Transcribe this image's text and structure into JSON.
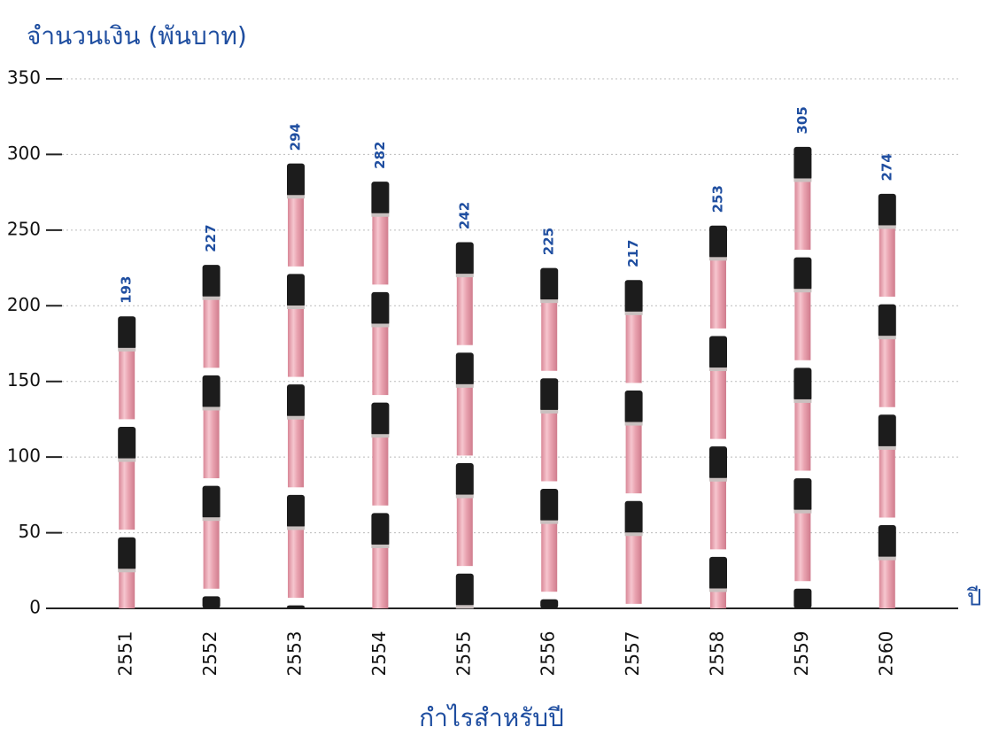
{
  "chart_data": {
    "type": "bar",
    "title": "จำนวนเงิน (พันบาท)",
    "x_label": "กำไรสำหรับปี",
    "x_unit": "ปี",
    "categories": [
      "2551",
      "2552",
      "2553",
      "2554",
      "2555",
      "2556",
      "2557",
      "2558",
      "2559",
      "2560"
    ],
    "values": [
      193,
      227,
      294,
      282,
      242,
      225,
      217,
      253,
      305,
      274
    ],
    "color": "#e9a3b0",
    "cap_color": "#1c1c1c",
    "label_color": "#1f4ea0",
    "ylim": [
      0,
      350
    ],
    "yticks": [
      0,
      50,
      100,
      150,
      200,
      250,
      300,
      350
    ],
    "grid": true
  }
}
